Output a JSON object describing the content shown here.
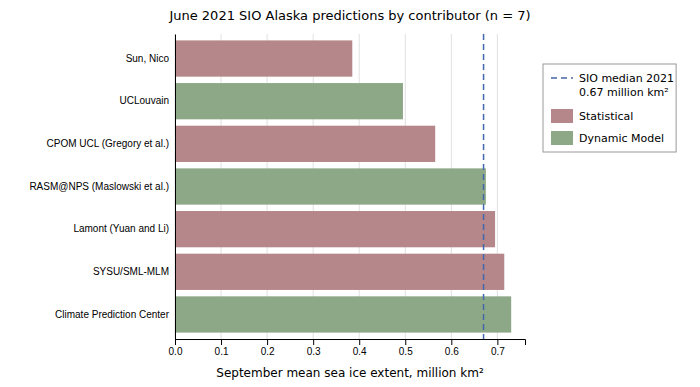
{
  "chart_data": {
    "type": "bar",
    "orientation": "horizontal",
    "title": "June 2021 SIO Alaska predictions by contributor (n = 7)",
    "x_label": "September mean sea ice extent, million km²",
    "categories": [
      "Climate Prediction Center",
      "SYSU/SML-MLM",
      "Lamont (Yuan and Li)",
      "RASM@NPS (Maslowski et al.)",
      "CPOM UCL (Gregory et al.)",
      "UCLouvain",
      "Sun, Nico"
    ],
    "series": [
      {
        "name": "Statistical",
        "color": "#b5868a",
        "values": [
          null,
          0.715,
          0.695,
          null,
          0.565,
          null,
          0.385
        ]
      },
      {
        "name": "Dynamic Model",
        "color": "#8da886",
        "values": [
          0.73,
          null,
          null,
          0.675,
          null,
          0.495,
          null
        ]
      }
    ],
    "reference_line": {
      "value": 0.67,
      "label": "SIO median 2021\n0.67 million km²",
      "color": "#4466aa",
      "line_style": "dashed"
    },
    "xlim": [
      0.0,
      0.76
    ],
    "xticks": [
      {
        "value": 0.0,
        "label": "0.0"
      },
      0.1,
      0.2,
      0.3,
      0.4,
      0.5,
      0.6,
      0.7
    ],
    "grid": true,
    "legend": "right"
  }
}
